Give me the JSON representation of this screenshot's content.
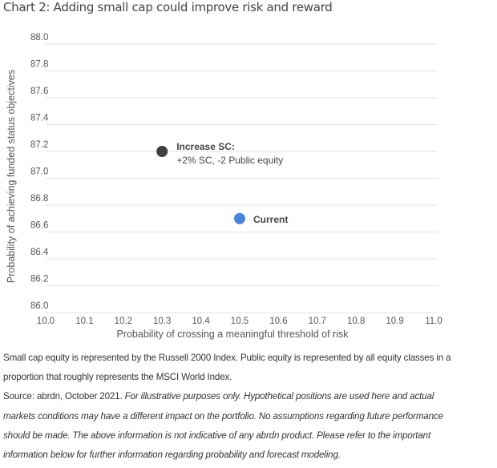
{
  "title": "Chart 2: Adding small cap could improve risk and reward",
  "chart_data": {
    "type": "scatter",
    "xlabel": "Probability of crossing a meaningful threshold of risk",
    "ylabel": "Probability of achieving funded status objectives",
    "xlim": [
      10.0,
      11.0
    ],
    "ylim": [
      86.0,
      88.0
    ],
    "x_ticks": [
      "10.0",
      "10.1",
      "10.2",
      "10.3",
      "10.4",
      "10.5",
      "10.6",
      "10.7",
      "10.8",
      "10.9",
      "11.0"
    ],
    "y_ticks": [
      "86.0",
      "86.2",
      "86.4",
      "86.6",
      "86.8",
      "87.0",
      "87.2",
      "87.4",
      "87.6",
      "87.8",
      "88.0"
    ],
    "grid": "horizontal",
    "points": [
      {
        "label": "Increase SC:",
        "sublabel": "+2% SC, -2 Public equity",
        "x": 10.3,
        "y": 87.2,
        "color": "#404040"
      },
      {
        "label": "Current",
        "x": 10.5,
        "y": 86.7,
        "color": "#4a86d4"
      }
    ]
  },
  "notes": {
    "line1": "Small cap equity is represented by the Russell 2000 Index. Public equity is represented by all equity classes in a",
    "line2": "proportion that roughly represents the MSCI World Index.",
    "source": "Source: abrdn, October 2021. ",
    "disclaimer1": "For illustrative purposes only. Hypothetical positions are used here and actual",
    "disclaimer2": "markets conditions may have a different impact on the portfolio. No assumptions regarding future performance",
    "disclaimer3": "should be made. The above information is not indicative of any abrdn product. Please refer to the important",
    "disclaimer4": "information below for further information regarding probability and forecast modeling."
  }
}
